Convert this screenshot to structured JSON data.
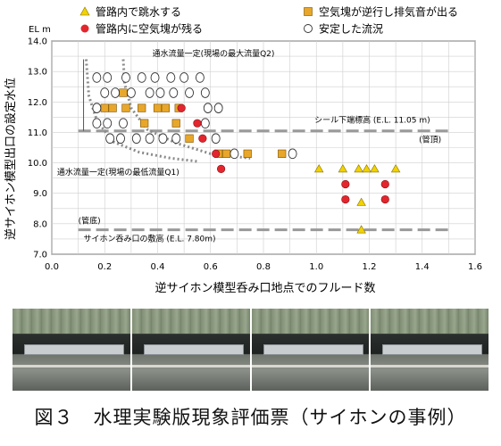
{
  "chart_data": {
    "type": "scatter",
    "title": "",
    "xlabel": "逆サイホン模型呑み口地点でのフルード数",
    "ylabel": "逆サイホン模型出口の設定水位",
    "y_unit": "EL m",
    "xlim": [
      0,
      1.6
    ],
    "ylim": [
      7.0,
      14.0
    ],
    "x_ticks": [
      "0.0",
      "0.2",
      "0.4",
      "0.6",
      "0.8",
      "1.0",
      "1.2",
      "1.4",
      "1.6"
    ],
    "y_ticks": [
      "7.0",
      "8.0",
      "9.0",
      "10.0",
      "11.0",
      "12.0",
      "13.0",
      "14.0"
    ],
    "grid": true,
    "legend_position": "top",
    "series": [
      {
        "name": "管路内で跳水する",
        "marker": "triangle",
        "color": "#f2d200",
        "points": [
          [
            1.01,
            9.8
          ],
          [
            1.1,
            9.8
          ],
          [
            1.16,
            9.8
          ],
          [
            1.19,
            9.8
          ],
          [
            1.22,
            9.8
          ],
          [
            1.3,
            9.8
          ],
          [
            1.17,
            8.7
          ],
          [
            1.17,
            7.8
          ]
        ]
      },
      {
        "name": "空気塊が逆行し排気音が出る",
        "marker": "square",
        "color": "#e8a72a",
        "points": [
          [
            0.2,
            11.8
          ],
          [
            0.23,
            11.8
          ],
          [
            0.28,
            11.8
          ],
          [
            0.34,
            11.8
          ],
          [
            0.4,
            11.8
          ],
          [
            0.43,
            11.8
          ],
          [
            0.48,
            11.8
          ],
          [
            0.27,
            12.3
          ],
          [
            0.35,
            11.3
          ],
          [
            0.47,
            11.3
          ],
          [
            0.52,
            10.8
          ],
          [
            0.63,
            10.3
          ],
          [
            0.66,
            10.3
          ],
          [
            0.74,
            10.3
          ],
          [
            0.87,
            10.3
          ]
        ]
      },
      {
        "name": "管路内に空気塊が残る",
        "marker": "circle-filled",
        "color": "#e3262e",
        "points": [
          [
            0.49,
            11.8
          ],
          [
            0.55,
            11.3
          ],
          [
            0.57,
            10.8
          ],
          [
            0.62,
            10.3
          ],
          [
            0.64,
            9.8
          ],
          [
            1.11,
            9.3
          ],
          [
            1.11,
            8.8
          ],
          [
            1.26,
            9.3
          ],
          [
            1.26,
            8.8
          ]
        ]
      },
      {
        "name": "安定した流況",
        "marker": "circle-open",
        "color": "#333333",
        "points": [
          [
            0.17,
            12.8
          ],
          [
            0.21,
            12.8
          ],
          [
            0.28,
            12.8
          ],
          [
            0.34,
            12.8
          ],
          [
            0.39,
            12.8
          ],
          [
            0.45,
            12.8
          ],
          [
            0.5,
            12.8
          ],
          [
            0.56,
            12.8
          ],
          [
            0.2,
            12.3
          ],
          [
            0.24,
            12.3
          ],
          [
            0.3,
            12.3
          ],
          [
            0.37,
            12.3
          ],
          [
            0.41,
            12.3
          ],
          [
            0.46,
            12.3
          ],
          [
            0.52,
            12.3
          ],
          [
            0.58,
            12.3
          ],
          [
            0.17,
            11.8
          ],
          [
            0.59,
            11.8
          ],
          [
            0.63,
            11.8
          ],
          [
            0.17,
            11.3
          ],
          [
            0.21,
            11.3
          ],
          [
            0.27,
            11.3
          ],
          [
            0.58,
            11.3
          ],
          [
            0.22,
            10.8
          ],
          [
            0.26,
            10.8
          ],
          [
            0.32,
            10.8
          ],
          [
            0.37,
            10.8
          ],
          [
            0.42,
            10.8
          ],
          [
            0.47,
            10.8
          ],
          [
            0.62,
            10.8
          ],
          [
            0.69,
            10.3
          ],
          [
            0.91,
            10.3
          ]
        ]
      }
    ],
    "reference_lines": [
      {
        "label": "シール下端標高 (E.L. 11.05 m)",
        "y": 11.05,
        "note": "(管頂)"
      },
      {
        "label": "サイホン呑み口の敷高 (E.L. 7.80m)",
        "y": 7.8,
        "note": "(管底)"
      }
    ],
    "curves": [
      {
        "label": "通水流量一定(現場の最大流量Q2)",
        "points": [
          [
            0.27,
            13.4
          ],
          [
            0.275,
            12.6
          ],
          [
            0.3,
            11.8
          ],
          [
            0.36,
            11.1
          ],
          [
            0.47,
            10.65
          ],
          [
            0.6,
            10.3
          ],
          [
            0.75,
            10.15
          ]
        ]
      },
      {
        "label": "通水流量一定(現場の最低流量Q1)",
        "points": [
          [
            0.13,
            13.4
          ],
          [
            0.14,
            12.2
          ],
          [
            0.17,
            11.4
          ],
          [
            0.23,
            10.7
          ],
          [
            0.33,
            10.35
          ],
          [
            0.45,
            10.15
          ],
          [
            0.55,
            10.05
          ]
        ]
      }
    ]
  },
  "photos": [
    "photo-1",
    "photo-2",
    "photo-3",
    "photo-4"
  ],
  "caption": "図３　水理実験版現象評価票（サイホンの事例）"
}
